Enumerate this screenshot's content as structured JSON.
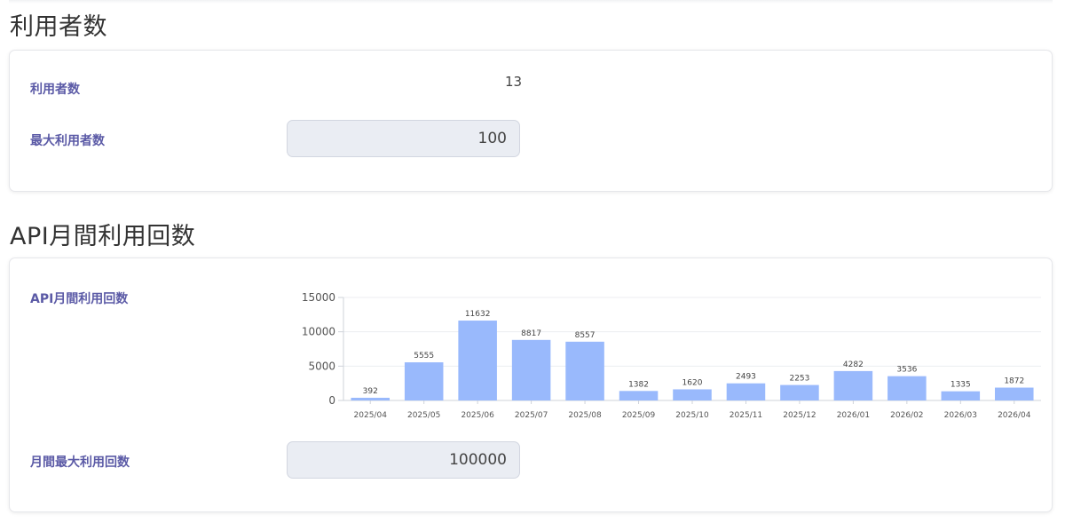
{
  "users_section": {
    "title": "利用者数",
    "users_label": "利用者数",
    "users_value": "13",
    "max_users_label": "最大利用者数",
    "max_users_value": "100"
  },
  "api_section": {
    "title": "API月間利用回数",
    "usage_label": "API月間利用回数",
    "max_monthly_label": "月間最大利用回数",
    "max_monthly_value": "100000"
  },
  "colors": {
    "bar": "#99b9fc",
    "label": "#5b5aa6"
  },
  "chart_data": {
    "type": "bar",
    "categories": [
      "2025/04",
      "2025/05",
      "2025/06",
      "2025/07",
      "2025/08",
      "2025/09",
      "2025/10",
      "2025/11",
      "2025/12",
      "2026/01",
      "2026/02",
      "2026/03",
      "2026/04"
    ],
    "values": [
      392,
      5555,
      11632,
      8817,
      8557,
      1382,
      1620,
      2493,
      2253,
      4282,
      3536,
      1335,
      1872
    ],
    "yticks": [
      0,
      5000,
      10000,
      15000
    ],
    "ylim": [
      0,
      15000
    ],
    "grid": true,
    "legend": "none"
  }
}
